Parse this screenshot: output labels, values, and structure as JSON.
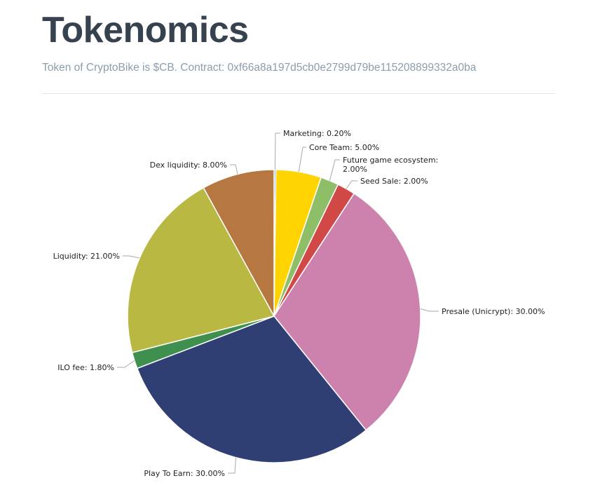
{
  "header": {
    "title": "Tokenomics",
    "subtitle": "Token of CryptoBike is $CB. Contract: 0xf66a8a197d5cb0e2799d79be115208899332a0ba"
  },
  "chart_data": {
    "type": "pie",
    "slices": [
      {
        "label": "Marketing: 0.20%",
        "value": 0.2,
        "color": "#7b95c9"
      },
      {
        "label": "Core Team: 5.00%",
        "value": 5.0,
        "color": "#ffd400"
      },
      {
        "label": "Future game ecosystem:\n2.00%",
        "value": 2.0,
        "color": "#8ebe67"
      },
      {
        "label": "Seed Sale: 2.00%",
        "value": 2.0,
        "color": "#d14947"
      },
      {
        "label": "Presale (Unicrypt): 30.00%",
        "value": 30.0,
        "color": "#cd82ae"
      },
      {
        "label": "Play To Earn: 30.00%",
        "value": 30.0,
        "color": "#2f3f74"
      },
      {
        "label": "ILO fee: 1.80%",
        "value": 1.8,
        "color": "#3f8f4f"
      },
      {
        "label": "Liquidity: 21.00%",
        "value": 21.0,
        "color": "#b8b843"
      },
      {
        "label": "Dex liquidity: 8.00%",
        "value": 8.0,
        "color": "#b67840"
      }
    ]
  }
}
